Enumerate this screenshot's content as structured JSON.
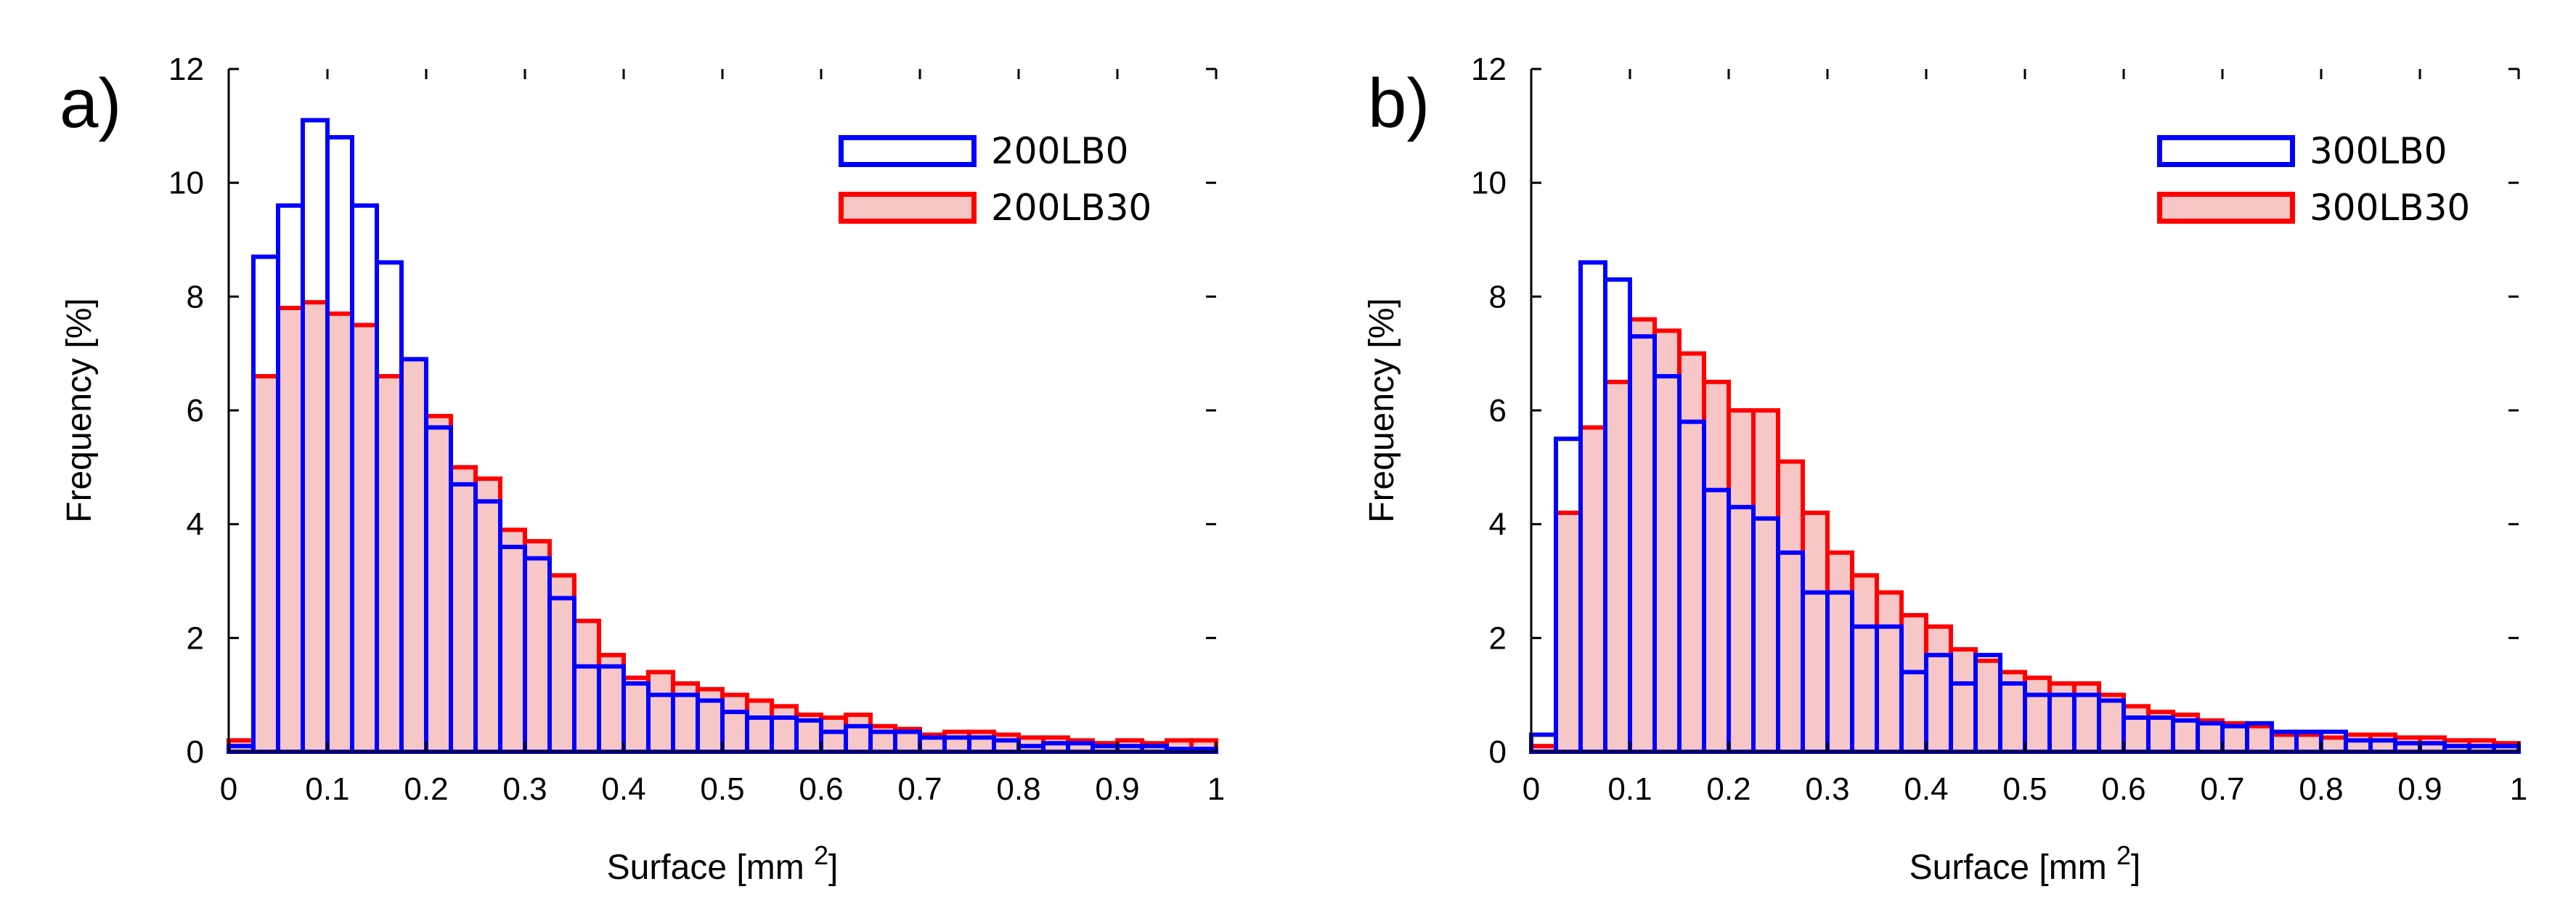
{
  "chart_data": [
    {
      "type": "bar",
      "panel": "a)",
      "xlabel": "Surface [mm",
      "xlabel_sup": "2",
      "xlabel_close": "]",
      "ylabel": "Frequency [%]",
      "xlim": [
        0,
        1
      ],
      "ylim": [
        0,
        12
      ],
      "xticks": [
        "0",
        "0.1",
        "0.2",
        "0.3",
        "0.4",
        "0.5",
        "0.6",
        "0.7",
        "0.8",
        "0.9",
        "1"
      ],
      "yticks": [
        "0",
        "2",
        "4",
        "6",
        "8",
        "10",
        "12"
      ],
      "bin_width": 0.025,
      "bin_starts": [
        0,
        0.025,
        0.05,
        0.075,
        0.1,
        0.125,
        0.15,
        0.175,
        0.2,
        0.225,
        0.25,
        0.275,
        0.3,
        0.325,
        0.35,
        0.375,
        0.4,
        0.425,
        0.45,
        0.475,
        0.5,
        0.525,
        0.55,
        0.575,
        0.6,
        0.625,
        0.65,
        0.675,
        0.7,
        0.725,
        0.75,
        0.775,
        0.8,
        0.825,
        0.85,
        0.875,
        0.9,
        0.925,
        0.95,
        0.975
      ],
      "legend_position": "top-right",
      "series": [
        {
          "name": "200LB30",
          "style": "filled",
          "color": "#ff0000",
          "fill": "#f7c6c6",
          "values": [
            0.2,
            6.6,
            7.8,
            7.9,
            7.7,
            7.5,
            6.6,
            6.9,
            5.9,
            5.0,
            4.8,
            3.9,
            3.7,
            3.1,
            2.3,
            1.7,
            1.3,
            1.4,
            1.2,
            1.1,
            1.0,
            0.9,
            0.8,
            0.65,
            0.6,
            0.65,
            0.45,
            0.4,
            0.3,
            0.35,
            0.35,
            0.3,
            0.25,
            0.25,
            0.2,
            0.15,
            0.2,
            0.15,
            0.2,
            0.2
          ]
        },
        {
          "name": "200LB0",
          "style": "outline",
          "color": "#0000ff",
          "values": [
            0.1,
            8.7,
            9.6,
            11.1,
            10.8,
            9.6,
            8.6,
            6.9,
            5.7,
            4.7,
            4.4,
            3.6,
            3.4,
            2.7,
            1.5,
            1.5,
            1.2,
            1.0,
            1.0,
            0.9,
            0.7,
            0.6,
            0.6,
            0.55,
            0.35,
            0.45,
            0.35,
            0.35,
            0.25,
            0.25,
            0.25,
            0.2,
            0.1,
            0.15,
            0.15,
            0.1,
            0.1,
            0.1,
            0.05,
            0.05
          ]
        }
      ]
    },
    {
      "type": "bar",
      "panel": "b)",
      "xlabel": "Surface [mm",
      "xlabel_sup": "2",
      "xlabel_close": "]",
      "ylabel": "Frequency [%]",
      "xlim": [
        0,
        1
      ],
      "ylim": [
        0,
        12
      ],
      "xticks": [
        "0",
        "0.1",
        "0.2",
        "0.3",
        "0.4",
        "0.5",
        "0.6",
        "0.7",
        "0.8",
        "0.9",
        "1"
      ],
      "yticks": [
        "0",
        "2",
        "4",
        "6",
        "8",
        "10",
        "12"
      ],
      "bin_width": 0.025,
      "bin_starts": [
        0,
        0.025,
        0.05,
        0.075,
        0.1,
        0.125,
        0.15,
        0.175,
        0.2,
        0.225,
        0.25,
        0.275,
        0.3,
        0.325,
        0.35,
        0.375,
        0.4,
        0.425,
        0.45,
        0.475,
        0.5,
        0.525,
        0.55,
        0.575,
        0.6,
        0.625,
        0.65,
        0.675,
        0.7,
        0.725,
        0.75,
        0.775,
        0.8,
        0.825,
        0.85,
        0.875,
        0.9,
        0.925,
        0.95,
        0.975
      ],
      "legend_position": "top-right",
      "series": [
        {
          "name": "300LB30",
          "style": "filled",
          "color": "#ff0000",
          "fill": "#f7c6c6",
          "values": [
            0.1,
            4.2,
            5.7,
            6.5,
            7.6,
            7.4,
            7.0,
            6.5,
            6.0,
            6.0,
            5.1,
            4.2,
            3.5,
            3.1,
            2.8,
            2.4,
            2.2,
            1.8,
            1.6,
            1.4,
            1.3,
            1.2,
            1.2,
            1.0,
            0.8,
            0.7,
            0.65,
            0.55,
            0.5,
            0.45,
            0.3,
            0.3,
            0.25,
            0.3,
            0.3,
            0.25,
            0.25,
            0.2,
            0.2,
            0.15
          ]
        },
        {
          "name": "300LB0",
          "style": "outline",
          "color": "#0000ff",
          "values": [
            0.3,
            5.5,
            8.6,
            8.3,
            7.3,
            6.6,
            5.8,
            4.6,
            4.3,
            4.1,
            3.5,
            2.8,
            2.8,
            2.2,
            2.2,
            1.4,
            1.7,
            1.2,
            1.7,
            1.2,
            1.0,
            1.0,
            1.0,
            0.9,
            0.6,
            0.6,
            0.55,
            0.5,
            0.45,
            0.5,
            0.35,
            0.35,
            0.35,
            0.2,
            0.2,
            0.15,
            0.15,
            0.1,
            0.1,
            0.1
          ]
        }
      ]
    }
  ]
}
